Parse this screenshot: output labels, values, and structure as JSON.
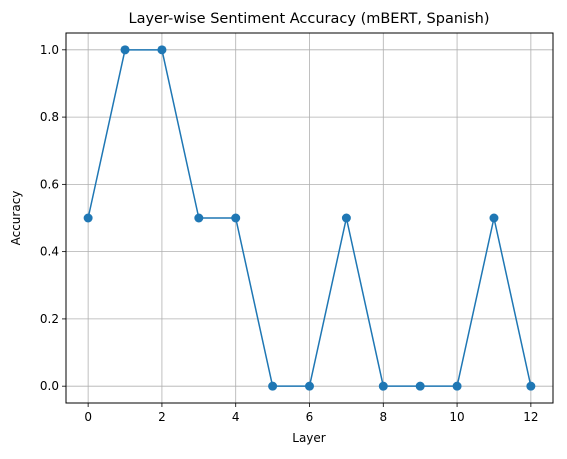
{
  "chart_data": {
    "type": "line",
    "title": "Layer-wise Sentiment Accuracy (mBERT, Spanish)",
    "xlabel": "Layer",
    "ylabel": "Accuracy",
    "x": [
      0,
      1,
      2,
      3,
      4,
      5,
      6,
      7,
      8,
      9,
      10,
      11,
      12
    ],
    "series": [
      {
        "values": [
          0.5,
          1.0,
          1.0,
          0.5,
          0.5,
          0.0,
          0.0,
          0.5,
          0.0,
          0.0,
          0.0,
          0.5,
          0.0
        ],
        "color": "#1f77b4",
        "marker": "circle"
      }
    ],
    "xticks": [
      0,
      2,
      4,
      6,
      8,
      10,
      12
    ],
    "xtick_labels": [
      "0",
      "2",
      "4",
      "6",
      "8",
      "10",
      "12"
    ],
    "yticks": [
      0.0,
      0.2,
      0.4,
      0.6,
      0.8,
      1.0
    ],
    "ytick_labels": [
      "0.0",
      "0.2",
      "0.4",
      "0.6",
      "0.8",
      "1.0"
    ],
    "xlim": [
      -0.6,
      12.6
    ],
    "ylim": [
      -0.05,
      1.05
    ],
    "grid": true,
    "grid_color": "#b0b0b0"
  }
}
